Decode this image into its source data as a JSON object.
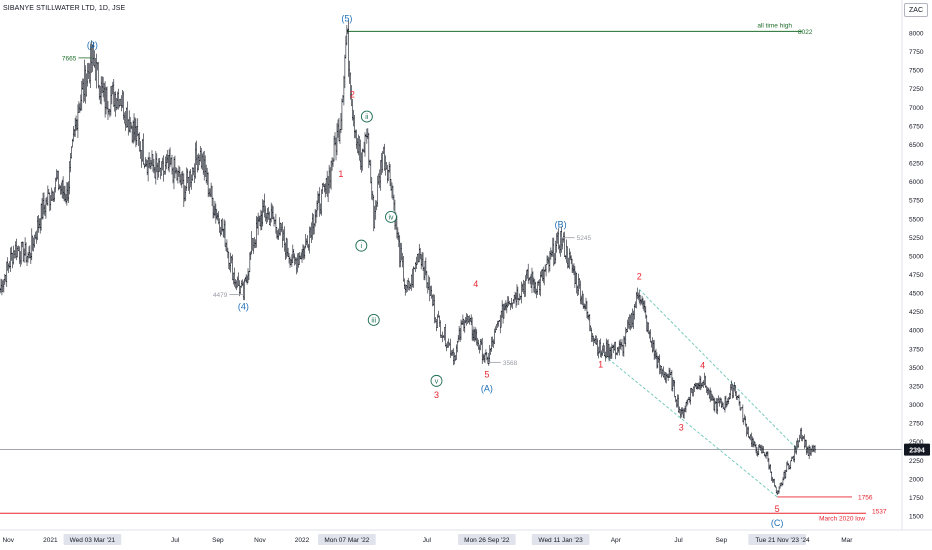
{
  "header": {
    "title": "SIBANYE STILLWATER LTD, 1D, JSE",
    "currency_button": "ZAC"
  },
  "colors": {
    "wave_blue": "#1e6fb8",
    "wave_red": "#e8232f",
    "ath_green": "#1f6e2b",
    "grey_label": "#9a9da6",
    "channel": "#6cc6b8",
    "price_line": "#9598a1"
  },
  "chart_data": {
    "type": "line",
    "title": "SIBANYE STILLWATER LTD, 1D, JSE",
    "xlabel": "",
    "ylabel": "",
    "ylim": [
      1350,
      8350
    ],
    "y_ticks": [
      1500,
      1750,
      2000,
      2250,
      2500,
      2750,
      3000,
      3250,
      3500,
      3750,
      4000,
      4250,
      4500,
      4750,
      5000,
      5250,
      5500,
      5750,
      6000,
      6250,
      6500,
      6750,
      7000,
      7250,
      7500,
      7750,
      8000
    ],
    "x_ticks": [
      {
        "label": "Nov",
        "x": "2020-11-01",
        "highlight": false
      },
      {
        "label": "2021",
        "x": "2021-01-01",
        "highlight": false
      },
      {
        "label": "Wed 03 Mar '21",
        "x": "2021-03-03",
        "highlight": true
      },
      {
        "label": "Jul",
        "x": "2021-07-01",
        "highlight": false
      },
      {
        "label": "Sep",
        "x": "2021-09-01",
        "highlight": false
      },
      {
        "label": "Nov",
        "x": "2021-11-01",
        "highlight": false
      },
      {
        "label": "2022",
        "x": "2022-01-01",
        "highlight": false
      },
      {
        "label": "Mon 07 Mar '22",
        "x": "2022-03-07",
        "highlight": true
      },
      {
        "label": "Jul",
        "x": "2022-07-01",
        "highlight": false
      },
      {
        "label": "Mon 26 Sep '22",
        "x": "2022-09-26",
        "highlight": true
      },
      {
        "label": "Wed 11 Jan '23",
        "x": "2023-01-11",
        "highlight": true
      },
      {
        "label": "Apr",
        "x": "2023-04-01",
        "highlight": false
      },
      {
        "label": "Jul",
        "x": "2023-07-01",
        "highlight": false
      },
      {
        "label": "Sep",
        "x": "2023-09-01",
        "highlight": false
      },
      {
        "label": "Tue 21 Nov '23",
        "x": "2023-11-21",
        "highlight": true
      },
      {
        "label": "'24",
        "x": "2024-01-01",
        "highlight": false
      },
      {
        "label": "Mar",
        "x": "2024-03-01",
        "highlight": false
      }
    ],
    "series": [
      {
        "values": [
          [
            "2020-10-20",
            4550
          ],
          [
            "2020-11-10",
            5100
          ],
          [
            "2020-12-01",
            5000
          ],
          [
            "2020-12-20",
            5600
          ],
          [
            "2021-01-10",
            6000
          ],
          [
            "2021-01-25",
            5800
          ],
          [
            "2021-02-10",
            7000
          ],
          [
            "2021-03-03",
            7665
          ],
          [
            "2021-03-20",
            7100
          ],
          [
            "2021-04-10",
            7200
          ],
          [
            "2021-05-01",
            6700
          ],
          [
            "2021-05-20",
            6300
          ],
          [
            "2021-06-10",
            6100
          ],
          [
            "2021-06-25",
            6200
          ],
          [
            "2021-07-15",
            5900
          ],
          [
            "2021-08-05",
            6400
          ],
          [
            "2021-08-25",
            5700
          ],
          [
            "2021-09-10",
            5300
          ],
          [
            "2021-09-25",
            4700
          ],
          [
            "2021-10-08",
            4479
          ],
          [
            "2021-10-20",
            5100
          ],
          [
            "2021-11-05",
            5600
          ],
          [
            "2021-11-20",
            5500
          ],
          [
            "2021-12-05",
            5200
          ],
          [
            "2021-12-20",
            4900
          ],
          [
            "2022-01-05",
            5100
          ],
          [
            "2022-01-20",
            5600
          ],
          [
            "2022-02-05",
            5900
          ],
          [
            "2022-02-25",
            6800
          ],
          [
            "2022-03-07",
            8022
          ],
          [
            "2022-03-15",
            7000
          ],
          [
            "2022-03-28",
            6200
          ],
          [
            "2022-04-05",
            6700
          ],
          [
            "2022-04-15",
            5500
          ],
          [
            "2022-04-28",
            6400
          ],
          [
            "2022-05-10",
            6050
          ],
          [
            "2022-05-20",
            5200
          ],
          [
            "2022-06-01",
            4500
          ],
          [
            "2022-06-10",
            4700
          ],
          [
            "2022-06-20",
            5100
          ],
          [
            "2022-07-01",
            4700
          ],
          [
            "2022-07-15",
            4150
          ],
          [
            "2022-07-28",
            3900
          ],
          [
            "2022-08-10",
            3650
          ],
          [
            "2022-08-25",
            4200
          ],
          [
            "2022-09-10",
            3900
          ],
          [
            "2022-09-26",
            3568
          ],
          [
            "2022-10-10",
            4000
          ],
          [
            "2022-10-25",
            4400
          ],
          [
            "2022-11-10",
            4500
          ],
          [
            "2022-11-25",
            4700
          ],
          [
            "2022-12-10",
            4600
          ],
          [
            "2022-12-25",
            4900
          ],
          [
            "2023-01-11",
            5245
          ],
          [
            "2023-01-25",
            4900
          ],
          [
            "2023-02-10",
            4500
          ],
          [
            "2023-02-25",
            4000
          ],
          [
            "2023-03-10",
            3700
          ],
          [
            "2023-03-25",
            3750
          ],
          [
            "2023-04-10",
            3750
          ],
          [
            "2023-04-25",
            4200
          ],
          [
            "2023-05-05",
            4550
          ],
          [
            "2023-05-20",
            3900
          ],
          [
            "2023-06-05",
            3450
          ],
          [
            "2023-06-20",
            3350
          ],
          [
            "2023-07-05",
            2850
          ],
          [
            "2023-07-20",
            3200
          ],
          [
            "2023-08-05",
            3350
          ],
          [
            "2023-08-20",
            3000
          ],
          [
            "2023-09-05",
            3000
          ],
          [
            "2023-09-20",
            3250
          ],
          [
            "2023-10-05",
            2750
          ],
          [
            "2023-10-20",
            2400
          ],
          [
            "2023-11-05",
            2350
          ],
          [
            "2023-11-21",
            1756
          ],
          [
            "2023-12-05",
            2150
          ],
          [
            "2023-12-15",
            2300
          ],
          [
            "2023-12-25",
            2650
          ],
          [
            "2024-01-05",
            2350
          ],
          [
            "2024-01-15",
            2394
          ]
        ]
      }
    ],
    "current_price": 2394,
    "annotations": {
      "horizontal_lines": [
        {
          "y": 8022,
          "label": "all time high",
          "value_label": "8022"
        },
        {
          "y": 1756,
          "value_label": "1756"
        },
        {
          "y": 1537,
          "value_label": "1537",
          "label": "March 2020 low"
        }
      ],
      "price_tags": [
        {
          "text": "7665",
          "y": 7665
        },
        {
          "text": "4479",
          "y": 4479
        },
        {
          "text": "3568",
          "y": 3568
        },
        {
          "text": "5245",
          "y": 5245
        }
      ],
      "waves": [
        {
          "text": "(3)",
          "x": "2021-03-03",
          "y": 7665,
          "color": "blue",
          "pos": "above"
        },
        {
          "text": "(4)",
          "x": "2021-10-08",
          "y": 4479,
          "color": "blue",
          "pos": "below"
        },
        {
          "text": "(5)",
          "x": "2022-03-07",
          "y": 8022,
          "color": "blue",
          "pos": "above"
        },
        {
          "text": "2",
          "x": "2022-03-15",
          "y": 7000,
          "color": "red",
          "pos": "above"
        },
        {
          "text": "1",
          "x": "2022-03-07",
          "y": 6100,
          "color": "red",
          "pos": "left"
        },
        {
          "text": "ii",
          "x": "2022-04-05",
          "y": 6700,
          "color": "green_circle",
          "pos": "above"
        },
        {
          "text": "i",
          "x": "2022-03-28",
          "y": 5300,
          "color": "green_circle",
          "pos": "below"
        },
        {
          "text": "iii",
          "x": "2022-04-15",
          "y": 4300,
          "color": "green_circle",
          "pos": "below"
        },
        {
          "text": "iv",
          "x": "2022-05-10",
          "y": 5350,
          "color": "green_circle",
          "pos": "above"
        },
        {
          "text": "v",
          "x": "2022-07-15",
          "y": 3480,
          "color": "green_circle",
          "pos": "below"
        },
        {
          "text": "3",
          "x": "2022-07-15",
          "y": 3480,
          "color": "red",
          "pos": "below2"
        },
        {
          "text": "4",
          "x": "2022-09-10",
          "y": 4450,
          "color": "red",
          "pos": "above"
        },
        {
          "text": "5",
          "x": "2022-09-26",
          "y": 3568,
          "color": "red",
          "pos": "below"
        },
        {
          "text": "(A)",
          "x": "2022-09-26",
          "y": 3568,
          "color": "blue",
          "pos": "below2"
        },
        {
          "text": "(B)",
          "x": "2023-01-11",
          "y": 5245,
          "color": "blue",
          "pos": "above"
        },
        {
          "text": "1",
          "x": "2023-03-10",
          "y": 3700,
          "color": "red",
          "pos": "below"
        },
        {
          "text": "2",
          "x": "2023-05-05",
          "y": 4550,
          "color": "red",
          "pos": "above"
        },
        {
          "text": "3",
          "x": "2023-07-05",
          "y": 2850,
          "color": "red",
          "pos": "below"
        },
        {
          "text": "4",
          "x": "2023-08-05",
          "y": 3350,
          "color": "red",
          "pos": "above"
        },
        {
          "text": "5",
          "x": "2023-11-21",
          "y": 1756,
          "color": "red",
          "pos": "below"
        },
        {
          "text": "(C)",
          "x": "2023-11-21",
          "y": 1756,
          "color": "blue",
          "pos": "below2"
        }
      ],
      "channel": {
        "upper": [
          [
            "2023-05-05",
            4550
          ],
          [
            "2023-12-20",
            2400
          ]
        ],
        "lower": [
          [
            "2023-03-10",
            3700
          ],
          [
            "2023-11-21",
            1756
          ]
        ]
      }
    }
  }
}
